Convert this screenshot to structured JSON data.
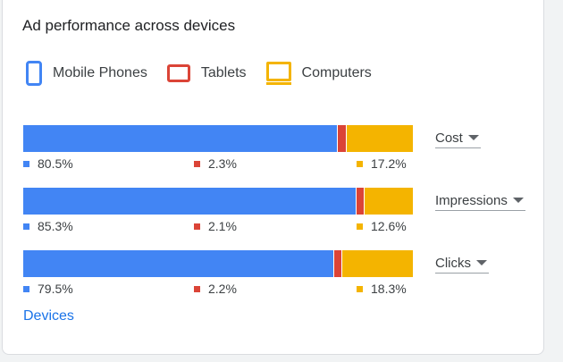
{
  "card": {
    "title": "Ad performance across devices",
    "link_label": "Devices"
  },
  "legend": [
    {
      "label": "Mobile Phones",
      "icon": "mobile-phone-icon",
      "color": "#4285f4"
    },
    {
      "label": "Tablets",
      "icon": "tablet-icon",
      "color": "#db4437"
    },
    {
      "label": "Computers",
      "icon": "computer-icon",
      "color": "#f4b400"
    }
  ],
  "rows": [
    {
      "metric": "Cost",
      "mobile": "80.5%",
      "tablet": "2.3%",
      "computer": "17.2%"
    },
    {
      "metric": "Impressions",
      "mobile": "85.3%",
      "tablet": "2.1%",
      "computer": "12.6%"
    },
    {
      "metric": "Clicks",
      "mobile": "79.5%",
      "tablet": "2.2%",
      "computer": "18.3%"
    }
  ],
  "chart_data": {
    "type": "bar",
    "stacked": true,
    "orientation": "horizontal",
    "categories": [
      "Cost",
      "Impressions",
      "Clicks"
    ],
    "series": [
      {
        "name": "Mobile Phones",
        "values": [
          80.5,
          85.3,
          79.5
        ],
        "color": "#4285f4"
      },
      {
        "name": "Tablets",
        "values": [
          2.3,
          2.1,
          2.2
        ],
        "color": "#db4437"
      },
      {
        "name": "Computers",
        "values": [
          17.2,
          12.6,
          18.3
        ],
        "color": "#f4b400"
      }
    ],
    "title": "Ad performance across devices"
  }
}
